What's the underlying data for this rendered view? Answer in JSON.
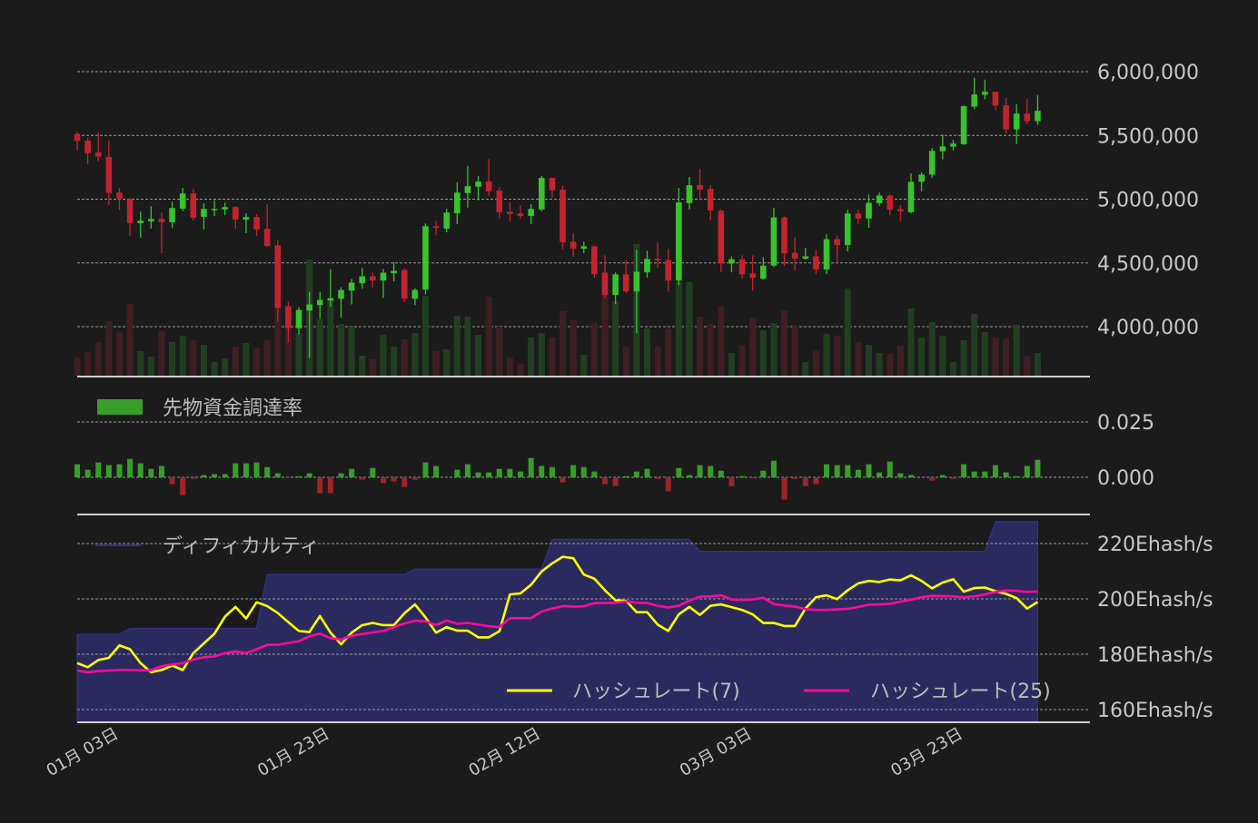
{
  "chart_data": [
    {
      "type": "candlestick",
      "panel": "price",
      "ylim": [
        3650000,
        6200000
      ],
      "y_ticks": [
        4000000,
        4500000,
        5000000,
        5500000,
        6000000
      ],
      "y_tick_labels": [
        "4,000,000",
        "4,500,000",
        "5,000,000",
        "5,500,000",
        "6,000,000"
      ],
      "grid": true,
      "colors": {
        "up": "#38c22c",
        "down": "#c3232f",
        "volume_up": "#223e22",
        "volume_down": "#3f1e22"
      },
      "ohlc_fields": [
        "open",
        "high",
        "low",
        "close"
      ],
      "ohlc": [
        [
          5512000,
          5531000,
          5383000,
          5457000
        ],
        [
          5460000,
          5481000,
          5274000,
          5362000
        ],
        [
          5367000,
          5524000,
          5298000,
          5333000
        ],
        [
          5331000,
          5460000,
          4952000,
          5048000
        ],
        [
          5052000,
          5088000,
          4917000,
          5005000
        ],
        [
          5000000,
          5007000,
          4710000,
          4812000
        ],
        [
          4812000,
          4902000,
          4698000,
          4831000
        ],
        [
          4826000,
          4945000,
          4769000,
          4845000
        ],
        [
          4845000,
          4895000,
          4576000,
          4819000
        ],
        [
          4819000,
          4981000,
          4774000,
          4931000
        ],
        [
          4926000,
          5088000,
          4905000,
          5045000
        ],
        [
          5045000,
          5081000,
          4833000,
          4855000
        ],
        [
          4862000,
          4967000,
          4762000,
          4924000
        ],
        [
          4919000,
          4993000,
          4869000,
          4924000
        ],
        [
          4919000,
          4974000,
          4876000,
          4938000
        ],
        [
          4938000,
          4945000,
          4769000,
          4840000
        ],
        [
          4840000,
          4888000,
          4733000,
          4860000
        ],
        [
          4860000,
          4881000,
          4710000,
          4762000
        ],
        [
          4767000,
          4960000,
          4626000,
          4633000
        ],
        [
          4638000,
          4681000,
          4040000,
          4148000
        ],
        [
          4160000,
          4195000,
          3876000,
          3988000
        ],
        [
          3988000,
          4152000,
          3940000,
          4131000
        ],
        [
          4126000,
          4274000,
          3755000,
          4174000
        ],
        [
          4169000,
          4274000,
          4060000,
          4210000
        ],
        [
          4205000,
          4452000,
          4155000,
          4224000
        ],
        [
          4219000,
          4310000,
          4069000,
          4288000
        ],
        [
          4283000,
          4374000,
          4174000,
          4345000
        ],
        [
          4340000,
          4460000,
          4298000,
          4395000
        ],
        [
          4395000,
          4424000,
          4305000,
          4362000
        ],
        [
          4362000,
          4452000,
          4226000,
          4424000
        ],
        [
          4419000,
          4502000,
          4355000,
          4438000
        ],
        [
          4445000,
          4460000,
          4190000,
          4219000
        ],
        [
          4219000,
          4302000,
          4169000,
          4288000
        ],
        [
          4290000,
          4810000,
          4255000,
          4788000
        ],
        [
          4788000,
          4831000,
          4717000,
          4776000
        ],
        [
          4769000,
          4924000,
          4740000,
          4895000
        ],
        [
          4890000,
          5131000,
          4805000,
          5052000
        ],
        [
          5048000,
          5260000,
          4933000,
          5102000
        ],
        [
          5098000,
          5181000,
          4990000,
          5138000
        ],
        [
          5138000,
          5317000,
          5026000,
          5062000
        ],
        [
          5067000,
          5095000,
          4848000,
          4898000
        ],
        [
          4902000,
          4974000,
          4826000,
          4883000
        ],
        [
          4888000,
          4952000,
          4845000,
          4869000
        ],
        [
          4869000,
          4960000,
          4805000,
          4924000
        ],
        [
          4919000,
          5181000,
          4905000,
          5167000
        ],
        [
          5167000,
          5167000,
          5012000,
          5069000
        ],
        [
          5074000,
          5110000,
          4610000,
          4662000
        ],
        [
          4667000,
          4731000,
          4548000,
          4612000
        ],
        [
          4612000,
          4667000,
          4576000,
          4631000
        ],
        [
          4631000,
          4631000,
          4383000,
          4412000
        ],
        [
          4424000,
          4560000,
          4226000,
          4248000
        ],
        [
          4248000,
          4424000,
          4176000,
          4410000
        ],
        [
          4410000,
          4524000,
          4262000,
          4276000
        ],
        [
          4276000,
          4602000,
          3948000,
          4431000
        ],
        [
          4426000,
          4595000,
          4383000,
          4531000
        ],
        [
          4531000,
          4660000,
          4462000,
          4519000
        ],
        [
          4524000,
          4610000,
          4276000,
          4362000
        ],
        [
          4362000,
          5088000,
          4326000,
          4974000
        ],
        [
          4969000,
          5174000,
          4919000,
          5110000
        ],
        [
          5110000,
          5238000,
          5000000,
          5076000
        ],
        [
          5081000,
          5110000,
          4833000,
          4912000
        ],
        [
          4910000,
          4917000,
          4426000,
          4495000
        ],
        [
          4495000,
          4552000,
          4426000,
          4529000
        ],
        [
          4529000,
          4560000,
          4376000,
          4412000
        ],
        [
          4417000,
          4560000,
          4283000,
          4383000
        ],
        [
          4376000,
          4545000,
          4369000,
          4479000
        ],
        [
          4479000,
          4931000,
          4469000,
          4857000
        ],
        [
          4857000,
          4864000,
          4476000,
          4576000
        ],
        [
          4579000,
          4702000,
          4440000,
          4533000
        ],
        [
          4533000,
          4617000,
          4526000,
          4552000
        ],
        [
          4552000,
          4602000,
          4412000,
          4448000
        ],
        [
          4448000,
          4724000,
          4412000,
          4686000
        ],
        [
          4686000,
          4717000,
          4493000,
          4640000
        ],
        [
          4640000,
          4917000,
          4590000,
          4888000
        ],
        [
          4888000,
          4917000,
          4805000,
          4848000
        ],
        [
          4848000,
          5036000,
          4776000,
          4971000
        ],
        [
          4969000,
          5052000,
          4948000,
          5029000
        ],
        [
          5029000,
          5036000,
          4876000,
          4919000
        ],
        [
          4921000,
          4952000,
          4826000,
          4905000
        ],
        [
          4898000,
          5202000,
          4890000,
          5136000
        ],
        [
          5136000,
          5210000,
          5062000,
          5193000
        ],
        [
          5193000,
          5400000,
          5169000,
          5379000
        ],
        [
          5376000,
          5507000,
          5312000,
          5414000
        ],
        [
          5412000,
          5464000,
          5383000,
          5436000
        ],
        [
          5431000,
          5738000,
          5426000,
          5729000
        ],
        [
          5726000,
          5952000,
          5707000,
          5821000
        ],
        [
          5819000,
          5938000,
          5783000,
          5843000
        ],
        [
          5843000,
          5843000,
          5698000,
          5733000
        ],
        [
          5736000,
          5795000,
          5512000,
          5548000
        ],
        [
          5548000,
          5745000,
          5433000,
          5671000
        ],
        [
          5671000,
          5788000,
          5590000,
          5612000
        ],
        [
          5612000,
          5817000,
          5583000,
          5693000
        ]
      ],
      "volume_relative": [
        20,
        26,
        37,
        60,
        48,
        79,
        27,
        21,
        49,
        37,
        44,
        39,
        34,
        15,
        19,
        32,
        36,
        30,
        39,
        137,
        55,
        47,
        128,
        62,
        85,
        57,
        54,
        22,
        18,
        45,
        32,
        40,
        47,
        88,
        27,
        29,
        66,
        65,
        45,
        87,
        54,
        20,
        13,
        42,
        47,
        42,
        71,
        61,
        23,
        58,
        91,
        82,
        32,
        145,
        52,
        32,
        52,
        103,
        103,
        65,
        57,
        76,
        25,
        33,
        64,
        50,
        58,
        72,
        56,
        15,
        27,
        46,
        44,
        96,
        37,
        34,
        25,
        24,
        33,
        74,
        42,
        59,
        44,
        15,
        39,
        68,
        48,
        42,
        41,
        56,
        22,
        25
      ],
      "x_tick_labels": [
        "01月 03日",
        "01月 23日",
        "02月 12日",
        "03月 03日",
        "03月 23日"
      ]
    },
    {
      "type": "bar",
      "panel": "funding",
      "legend": "先物資金調達率",
      "legend_placement": "top-left",
      "ylim": [
        -0.011,
        0.03
      ],
      "y_ticks": [
        0.0,
        0.025
      ],
      "y_tick_labels": [
        "0.000",
        "0.025"
      ],
      "colors": {
        "positive": "#389e2a",
        "negative": "#9e2429"
      },
      "values": [
        0.0059,
        0.0034,
        0.0067,
        0.0055,
        0.0059,
        0.0083,
        0.0063,
        0.0038,
        0.0051,
        -0.0031,
        -0.0081,
        -0.0007,
        0.001,
        0.0014,
        0.0014,
        0.0063,
        0.0063,
        0.0067,
        0.0046,
        0.0018,
        -0.0003,
        0.0005,
        0.0018,
        -0.0072,
        -0.0072,
        0.0018,
        0.0038,
        -0.0011,
        0.0042,
        -0.0027,
        -0.0019,
        -0.0044,
        -0.0011,
        0.0067,
        0.0051,
        0.0,
        0.0034,
        0.0059,
        0.0022,
        0.0022,
        0.0038,
        0.0038,
        0.0026,
        0.0087,
        0.0051,
        0.0046,
        -0.0023,
        0.0055,
        0.0046,
        0.0026,
        -0.0031,
        -0.004,
        0.0005,
        0.0026,
        0.0038,
        -0.0007,
        -0.0064,
        0.0042,
        0.001,
        0.0055,
        0.0051,
        0.003,
        -0.004,
        0.0005,
        -0.0005,
        0.003,
        0.0075,
        -0.0101,
        -0.0007,
        -0.004,
        -0.0031,
        0.0059,
        0.0055,
        0.0055,
        0.0034,
        0.0059,
        0.0022,
        0.0071,
        0.0018,
        0.001,
        0.0,
        -0.0015,
        0.001,
        -0.0007,
        0.0059,
        0.0026,
        0.0026,
        0.0055,
        0.0022,
        0.0005,
        0.0051,
        0.0079
      ]
    },
    {
      "type": "line",
      "panel": "hashrate",
      "ylim": [
        153,
        228
      ],
      "y_ticks": [
        160,
        180,
        200,
        220
      ],
      "y_tick_labels": [
        "160Ehash/s",
        "180Ehash/s",
        "200Ehash/s",
        "220Ehash/s"
      ],
      "grid": true,
      "series": [
        {
          "name": "ディフィカルティ",
          "kind": "area",
          "color": "#2a2a5e",
          "stroke": "#33338c",
          "values": [
            187.2,
            187.2,
            187.2,
            187.2,
            187.2,
            189.3,
            189.3,
            189.3,
            189.3,
            189.3,
            189.3,
            189.3,
            189.3,
            189.3,
            189.3,
            189.3,
            189.3,
            189.3,
            208.8,
            208.8,
            208.8,
            208.8,
            208.8,
            208.8,
            208.8,
            208.8,
            208.8,
            208.8,
            208.8,
            208.8,
            208.8,
            208.8,
            210.8,
            210.8,
            210.8,
            210.8,
            210.8,
            210.8,
            210.8,
            210.8,
            210.8,
            210.8,
            210.8,
            210.8,
            210.8,
            221.5,
            221.5,
            221.5,
            221.5,
            221.5,
            221.5,
            221.5,
            221.5,
            221.5,
            221.5,
            221.5,
            221.5,
            221.5,
            221.5,
            217.2,
            217.2,
            217.2,
            217.2,
            217.2,
            217.2,
            217.2,
            217.2,
            217.2,
            217.2,
            217.2,
            217.2,
            217.2,
            217.2,
            217.2,
            217.2,
            217.2,
            217.2,
            217.2,
            217.2,
            217.2,
            217.2,
            217.2,
            217.2,
            217.2,
            217.2,
            217.2,
            217.2,
            227.9,
            227.9,
            227.9,
            227.9,
            227.9
          ]
        },
        {
          "name": "ハッシュレート(7)",
          "kind": "line",
          "color": "#ffff00",
          "values": [
            176.8,
            175.3,
            177.9,
            178.7,
            183.2,
            181.8,
            176.8,
            173.5,
            174.3,
            175.9,
            174.3,
            180.4,
            183.9,
            187.4,
            193.6,
            197.1,
            192.9,
            198.8,
            197.4,
            194.9,
            191.6,
            188.4,
            188.0,
            193.8,
            187.8,
            183.6,
            187.8,
            190.5,
            191.3,
            190.5,
            190.5,
            194.8,
            198.0,
            193.3,
            187.8,
            189.8,
            188.5,
            188.5,
            186.1,
            186.1,
            188.3,
            201.6,
            202.0,
            205.1,
            209.9,
            212.8,
            215.2,
            214.7,
            208.8,
            207.3,
            203.1,
            199.5,
            199.3,
            195.2,
            195.2,
            190.7,
            188.4,
            194.4,
            197.1,
            194.2,
            197.5,
            198.0,
            197.0,
            196.0,
            194.4,
            191.3,
            191.3,
            190.2,
            190.2,
            196.5,
            200.6,
            201.3,
            199.9,
            203.1,
            205.6,
            206.5,
            206.1,
            207.0,
            206.7,
            208.5,
            206.5,
            203.8,
            205.9,
            207.1,
            202.6,
            203.9,
            204.1,
            202.8,
            201.8,
            200.3,
            196.5,
            198.9
          ]
        },
        {
          "name": "ハッシュレート(25)",
          "kind": "line",
          "color": "#ff0aa0",
          "values": [
            174.1,
            173.5,
            173.9,
            174.1,
            174.3,
            174.3,
            174.2,
            174.2,
            175.7,
            176.3,
            176.8,
            178.1,
            178.9,
            179.2,
            180.4,
            181.0,
            180.4,
            181.8,
            183.4,
            183.4,
            184.1,
            184.7,
            186.5,
            187.4,
            185.8,
            185.3,
            186.7,
            187.3,
            187.9,
            188.4,
            189.8,
            191.1,
            192.1,
            191.9,
            190.5,
            192.2,
            191.0,
            191.3,
            190.7,
            190.1,
            189.8,
            193.0,
            193.0,
            193.0,
            195.4,
            196.5,
            197.4,
            197.2,
            197.3,
            198.5,
            198.5,
            198.6,
            199.1,
            198.6,
            198.5,
            197.5,
            196.9,
            197.5,
            199.4,
            200.8,
            200.9,
            201.3,
            199.8,
            199.6,
            199.8,
            200.4,
            198.1,
            197.6,
            197.2,
            196.3,
            196.0,
            196.0,
            196.2,
            196.4,
            197.1,
            197.9,
            198.0,
            198.2,
            199.0,
            199.7,
            200.6,
            201.1,
            201.0,
            200.9,
            200.6,
            200.9,
            201.6,
            202.5,
            203.0,
            202.9,
            202.5,
            202.7
          ]
        }
      ]
    }
  ]
}
